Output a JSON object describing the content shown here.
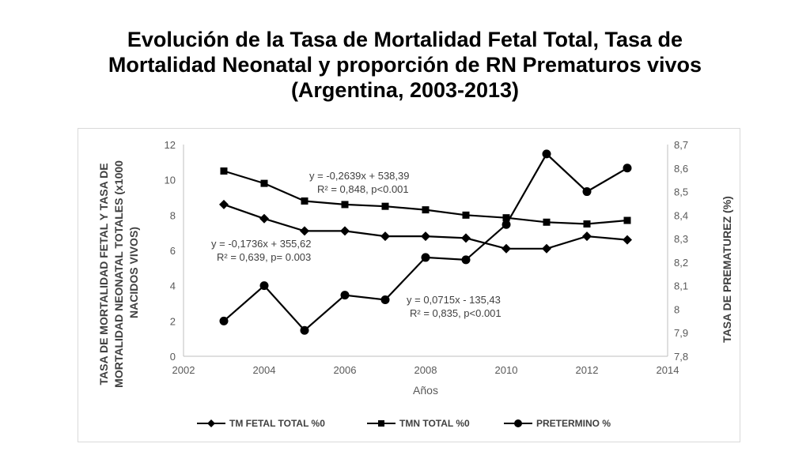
{
  "title": {
    "line1": "Evolución de la Tasa de Mortalidad Fetal Total, Tasa de",
    "line2": "Mortalidad Neonatal y proporción de RN Prematuros vivos",
    "line3": "(Argentina, 2003-2013)"
  },
  "chart_data": {
    "type": "line",
    "xlabel": "Años",
    "ylabel_left_lines": [
      "TASA DE MORTALIDAD FETAL  Y TASA DE",
      "MORTALIDAD NEONATAL TOTALES (x1000",
      "NACIDOS VIVOS)"
    ],
    "ylabel_right": "TASA DE PREMATUREZ (%)",
    "xlim": [
      2002,
      2014
    ],
    "x_ticks": [
      "2002",
      "2004",
      "2006",
      "2008",
      "2010",
      "2012",
      "2014"
    ],
    "ylim_left": [
      0,
      12
    ],
    "y_ticks_left": [
      "0",
      "2",
      "4",
      "6",
      "8",
      "10",
      "12"
    ],
    "ylim_right": [
      7.8,
      8.7
    ],
    "y_ticks_right": [
      "7,8",
      "7,9",
      "8",
      "8,1",
      "8,2",
      "8,3",
      "8,4",
      "8,5",
      "8,6",
      "8,7"
    ],
    "grid": false,
    "legend_position": "bottom",
    "series": [
      {
        "name": "TM FETAL TOTAL %0",
        "axis": "left",
        "marker": "diamond",
        "color": "#000000",
        "x": [
          2003,
          2004,
          2005,
          2006,
          2007,
          2008,
          2009,
          2010,
          2011,
          2012,
          2013
        ],
        "y": [
          8.6,
          7.8,
          7.1,
          7.1,
          6.8,
          6.8,
          6.7,
          6.1,
          6.1,
          6.8,
          6.6
        ]
      },
      {
        "name": "TMN TOTAL %0",
        "axis": "left",
        "marker": "square",
        "color": "#000000",
        "x": [
          2003,
          2004,
          2005,
          2006,
          2007,
          2008,
          2009,
          2010,
          2011,
          2012,
          2013
        ],
        "y": [
          10.5,
          9.8,
          8.8,
          8.6,
          8.5,
          8.3,
          8.0,
          7.85,
          7.6,
          7.5,
          7.7
        ]
      },
      {
        "name": "PRETERMINO %",
        "axis": "right",
        "marker": "circle",
        "color": "#000000",
        "x": [
          2003,
          2004,
          2005,
          2006,
          2007,
          2008,
          2009,
          2010,
          2011,
          2012,
          2013
        ],
        "y": [
          7.95,
          8.1,
          7.91,
          8.06,
          8.04,
          8.22,
          8.21,
          8.36,
          8.66,
          8.5,
          8.6
        ]
      }
    ],
    "annotations": [
      {
        "line1": "y = -0,2639x + 538,39",
        "line2": "R² = 0,848, p<0.001"
      },
      {
        "line1": "y = -0,1736x + 355,62",
        "line2": "R² = 0,639, p= 0.003"
      },
      {
        "line1": "y = 0,0715x - 135,43",
        "line2": "R² = 0,835, p<0.001"
      }
    ]
  }
}
